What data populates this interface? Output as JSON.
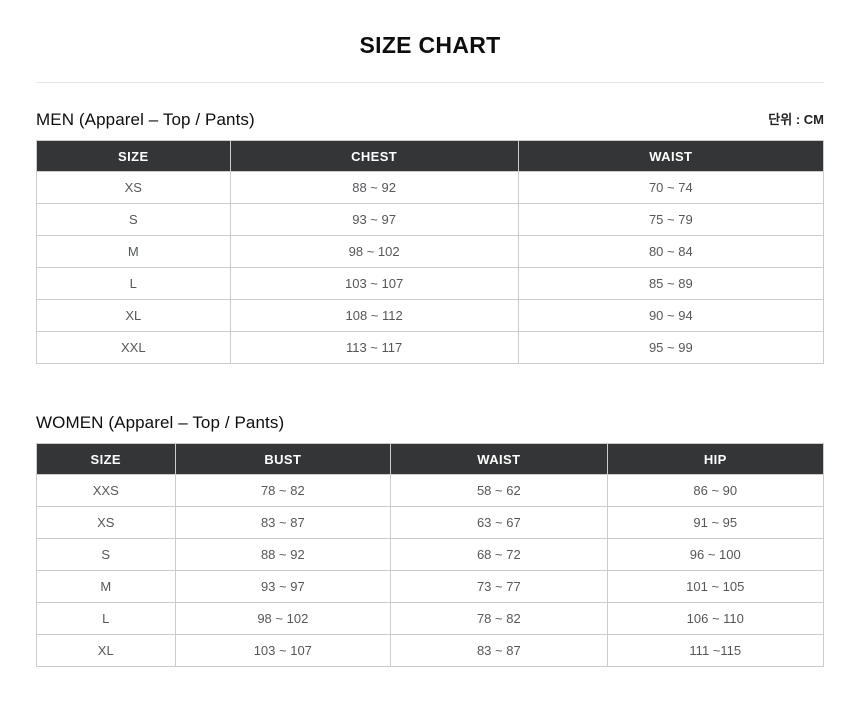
{
  "page": {
    "title": "SIZE CHART",
    "unit_label": "단위 : CM"
  },
  "tables": [
    {
      "id": "men",
      "heading": "MEN (Apparel  – Top / Pants)",
      "columns": [
        "SIZE",
        "CHEST",
        "WAIST"
      ],
      "rows": [
        [
          "XS",
          "88 ~ 92",
          "70 ~ 74"
        ],
        [
          "S",
          "93 ~ 97",
          "75 ~ 79"
        ],
        [
          "M",
          "98 ~ 102",
          "80 ~ 84"
        ],
        [
          "L",
          "103 ~ 107",
          "85 ~ 89"
        ],
        [
          "XL",
          "108 ~ 112",
          "90 ~ 94"
        ],
        [
          "XXL",
          "113 ~ 117",
          "95 ~ 99"
        ]
      ]
    },
    {
      "id": "women",
      "heading": "WOMEN (Apparel  – Top / Pants)",
      "columns": [
        "SIZE",
        "BUST",
        "WAIST",
        "HIP"
      ],
      "rows": [
        [
          "XXS",
          "78 ~ 82",
          "58 ~ 62",
          "86 ~ 90"
        ],
        [
          "XS",
          "83 ~ 87",
          "63 ~ 67",
          "91 ~ 95"
        ],
        [
          "S",
          "88 ~ 92",
          "68 ~ 72",
          "96 ~ 100"
        ],
        [
          "M",
          "93 ~ 97",
          "73 ~ 77",
          "101 ~ 105"
        ],
        [
          "L",
          "98 ~ 102",
          "78 ~ 82",
          "106 ~ 110"
        ],
        [
          "XL",
          "103 ~ 107",
          "83 ~ 87",
          "111 ~115"
        ]
      ]
    }
  ],
  "colors": {
    "table_header_bg": "#333537",
    "table_header_text": "#ffffff",
    "body_text": "#55575a",
    "border": "#cccccc",
    "divider": "#e7e7e7"
  }
}
